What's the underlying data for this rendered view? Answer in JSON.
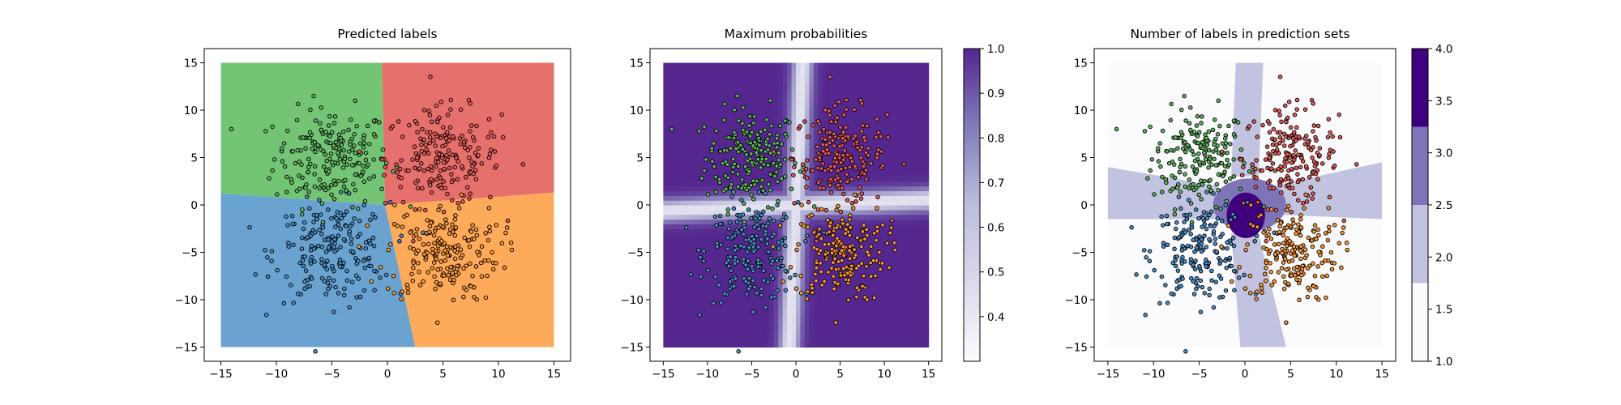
{
  "chart_data": [
    {
      "type": "scatter",
      "title": "Predicted labels",
      "xlabel": "",
      "ylabel": "",
      "xlim": [
        -16.5,
        16.5
      ],
      "ylim": [
        -16.5,
        16.5
      ],
      "xticks": [
        "−15",
        "−10",
        "−5",
        "0",
        "5",
        "10",
        "15"
      ],
      "yticks": [
        "−15",
        "−10",
        "−5",
        "0",
        "5",
        "10",
        "15"
      ],
      "grid": false,
      "background": "predicted-class regions on a [-15, 15] grid",
      "regions": [
        {
          "class": "green",
          "color": "#74c476",
          "polygon": [
            [
              -15,
              15
            ],
            [
              -0.5,
              15
            ],
            [
              -0.2,
              0
            ],
            [
              -15,
              1.2
            ]
          ]
        },
        {
          "class": "red",
          "color": "#e6706c",
          "polygon": [
            [
              -0.5,
              15
            ],
            [
              15,
              15
            ],
            [
              15,
              1.3
            ],
            [
              -0.2,
              0
            ]
          ]
        },
        {
          "class": "blue",
          "color": "#6ba3d0",
          "polygon": [
            [
              -15,
              1.2
            ],
            [
              -0.2,
              0
            ],
            [
              2.5,
              -15
            ],
            [
              -15,
              -15
            ]
          ]
        },
        {
          "class": "orange",
          "color": "#fdaa5b",
          "polygon": [
            [
              -0.2,
              0
            ],
            [
              15,
              1.3
            ],
            [
              15,
              -15
            ],
            [
              2.5,
              -15
            ]
          ]
        }
      ],
      "clusters": [
        {
          "class": "green",
          "center": [
            -5,
            5
          ],
          "point_color": "#5fb85f"
        },
        {
          "class": "red",
          "center": [
            5,
            5
          ],
          "point_color": "#e85b58"
        },
        {
          "class": "blue",
          "center": [
            -5,
            -5
          ],
          "point_color": "#4a90c8"
        },
        {
          "class": "orange",
          "center": [
            5,
            -5
          ],
          "point_color": "#ff9933"
        }
      ],
      "points_per_cluster": 200,
      "cluster_std": 2.6
    },
    {
      "type": "heatmap",
      "title": "Maximum probabilities",
      "xlabel": "",
      "ylabel": "",
      "xlim": [
        -16.5,
        16.5
      ],
      "ylim": [
        -16.5,
        16.5
      ],
      "xticks": [
        "−15",
        "−10",
        "−5",
        "0",
        "5",
        "10",
        "15"
      ],
      "yticks": [
        "−15",
        "−10",
        "−5",
        "0",
        "5",
        "10",
        "15"
      ],
      "description": "max class probability, dark purple ≈ 1.0 away from class boundaries, light near boundaries x≈0 and y≈0",
      "colormap": "Purples",
      "range": [
        0.3,
        1.0
      ],
      "colorbar": {
        "min": 0.3,
        "max": 1.0,
        "ticks": [
          "0.4",
          "0.5",
          "0.6",
          "0.7",
          "0.8",
          "0.9",
          "1.0"
        ]
      },
      "clusters_overlaid": true
    },
    {
      "type": "heatmap",
      "title": "Number of labels in prediction sets",
      "xlabel": "",
      "ylabel": "",
      "xlim": [
        -16.5,
        16.5
      ],
      "ylim": [
        -16.5,
        16.5
      ],
      "xticks": [
        "−15",
        "−10",
        "−5",
        "0",
        "5",
        "10",
        "15"
      ],
      "yticks": [
        "−15",
        "−10",
        "−5",
        "0",
        "5",
        "10",
        "15"
      ],
      "levels": [
        {
          "value": 1,
          "color": "#fbfbfe"
        },
        {
          "value": 2,
          "color": "#c2c3e0"
        },
        {
          "value": 3,
          "color": "#7e74b8"
        },
        {
          "value": 4,
          "color": "#3f007d"
        }
      ],
      "colorbar": {
        "min": 1.0,
        "max": 4.0,
        "ticks": [
          "1.0",
          "1.5",
          "2.0",
          "2.5",
          "3.0",
          "3.5",
          "4.0"
        ]
      },
      "regions": [
        {
          "labels": 2,
          "shape": "horizontal band",
          "polygon": [
            [
              -15,
              4
            ],
            [
              -3,
              2
            ],
            [
              -3,
              -1.5
            ],
            [
              -15,
              -1.5
            ]
          ]
        },
        {
          "labels": 2,
          "shape": "horizontal band",
          "polygon": [
            [
              3,
              2
            ],
            [
              15,
              4.5
            ],
            [
              15,
              -1.5
            ],
            [
              3,
              -1
            ]
          ]
        },
        {
          "labels": 2,
          "shape": "vertical band",
          "polygon": [
            [
              -1,
              15
            ],
            [
              2,
              15
            ],
            [
              1.5,
              3
            ],
            [
              -1.5,
              3
            ]
          ]
        },
        {
          "labels": 2,
          "shape": "vertical band",
          "polygon": [
            [
              -1.5,
              -3
            ],
            [
              1.5,
              -3
            ],
            [
              4.5,
              -15
            ],
            [
              -0.5,
              -15
            ]
          ]
        },
        {
          "labels": 3,
          "center": [
            0.5,
            0
          ],
          "radius": [
            4,
            2.8
          ]
        },
        {
          "labels": 4,
          "center": [
            0.1,
            -1.1
          ],
          "radius": [
            2.1,
            2.4
          ]
        }
      ],
      "clusters_overlaid": true
    }
  ]
}
